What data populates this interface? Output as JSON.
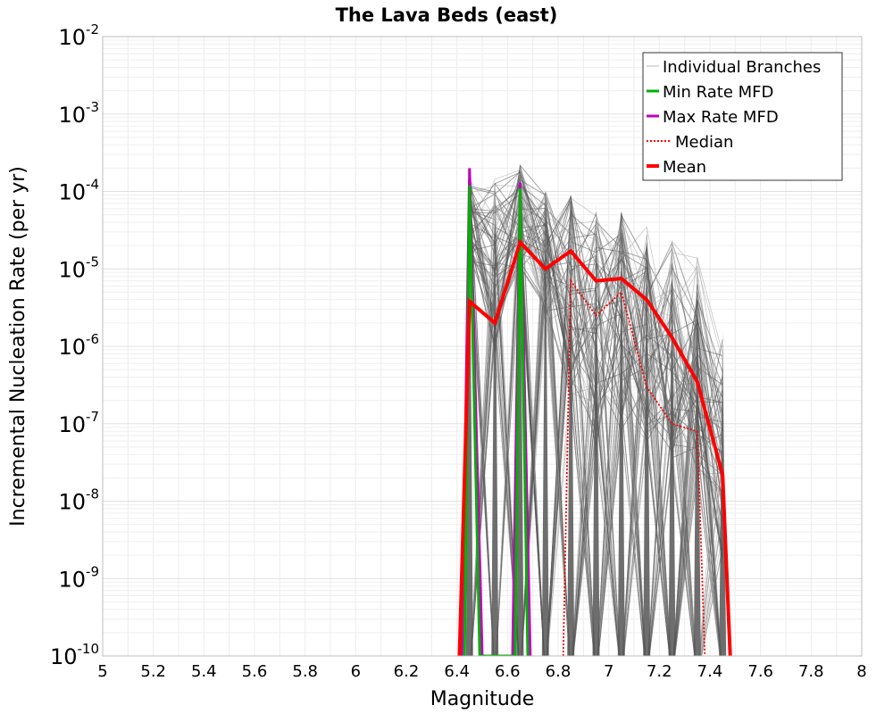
{
  "chart_data": {
    "type": "line",
    "title": "The Lava Beds (east)",
    "xlabel": "Magnitude",
    "ylabel": "Incremental Nucleation Rate (per yr)",
    "xlim": [
      5,
      8
    ],
    "ylim": [
      1e-10,
      0.01
    ],
    "yscale": "log",
    "grid": true,
    "legend_position": "top-right",
    "x_ticks": [
      "5",
      "5.2",
      "5.4",
      "5.6",
      "5.8",
      "6",
      "6.2",
      "6.4",
      "6.6",
      "6.8",
      "7",
      "7.2",
      "7.4",
      "7.6",
      "7.8",
      "8"
    ],
    "y_ticks": [
      {
        "base": "10",
        "exp": "-10",
        "value": 1e-10
      },
      {
        "base": "10",
        "exp": "-9",
        "value": 1e-09
      },
      {
        "base": "10",
        "exp": "-8",
        "value": 1e-08
      },
      {
        "base": "10",
        "exp": "-7",
        "value": 1e-07
      },
      {
        "base": "10",
        "exp": "-6",
        "value": 1e-06
      },
      {
        "base": "10",
        "exp": "-5",
        "value": 1e-05
      },
      {
        "base": "10",
        "exp": "-4",
        "value": 0.0001
      },
      {
        "base": "10",
        "exp": "-3",
        "value": 0.001
      },
      {
        "base": "10",
        "exp": "-2",
        "value": 0.01
      }
    ],
    "series": [
      {
        "name": "Max Rate MFD",
        "color": "#c000c0",
        "style": "solid",
        "x": [
          6.42,
          6.45,
          6.5,
          6.62,
          6.65,
          6.69
        ],
        "y": [
          1e-10,
          0.0002,
          1e-10,
          1e-10,
          0.00013,
          1e-10
        ]
      },
      {
        "name": "Min Rate MFD",
        "color": "#00b000",
        "style": "solid",
        "x": [
          6.43,
          6.45,
          6.49,
          6.63,
          6.65,
          6.68
        ],
        "y": [
          1e-10,
          0.00012,
          1e-10,
          1e-10,
          0.00011,
          1e-10
        ]
      },
      {
        "name": "Median",
        "color": "#ff0000",
        "style": "dotted",
        "x": [
          6.82,
          6.85,
          6.95,
          7.05,
          7.15,
          7.25,
          7.35,
          7.38
        ],
        "y": [
          1e-10,
          7e-06,
          2.5e-06,
          5e-06,
          3e-07,
          1e-07,
          8e-08,
          1e-10
        ]
      },
      {
        "name": "Mean",
        "color": "#ff0000",
        "style": "solid",
        "x": [
          6.41,
          6.45,
          6.55,
          6.65,
          6.75,
          6.85,
          6.95,
          7.05,
          7.15,
          7.25,
          7.35,
          7.45,
          7.48
        ],
        "y": [
          1e-10,
          3.8e-06,
          2e-06,
          2.2e-05,
          1e-05,
          1.7e-05,
          7e-06,
          7.5e-06,
          4e-06,
          1.3e-06,
          3.5e-07,
          2.2e-08,
          1e-10
        ]
      }
    ],
    "branches": {
      "name": "Individual Branches",
      "color": "#555555",
      "light_color": "#b0b0b0",
      "x": [
        6.45,
        6.55,
        6.65,
        6.75,
        6.85,
        6.95,
        7.05,
        7.15,
        7.25,
        7.35,
        7.45
      ],
      "y_min": [
        1.2e-05,
        8e-07,
        1e-05,
        2e-06,
        2e-07,
        5e-08,
        8e-08,
        5e-08,
        3e-08,
        2e-08,
        1e-09
      ],
      "y_max": [
        0.0002,
        0.00015,
        0.00022,
        0.00011,
        9e-05,
        7e-05,
        6e-05,
        4e-05,
        2.5e-05,
        1.5e-05,
        1.5e-06
      ]
    }
  },
  "legend": [
    {
      "label": "Individual Branches",
      "color": "#bbbbbb",
      "style": "solid",
      "width": 1
    },
    {
      "label": "Min Rate MFD",
      "color": "#00b000",
      "style": "solid",
      "width": 3
    },
    {
      "label": "Max Rate MFD",
      "color": "#c000c0",
      "style": "solid",
      "width": 3
    },
    {
      "label": "Median",
      "color": "#ff0000",
      "style": "dotted",
      "width": 2
    },
    {
      "label": "Mean",
      "color": "#ff0000",
      "style": "solid",
      "width": 4
    }
  ]
}
